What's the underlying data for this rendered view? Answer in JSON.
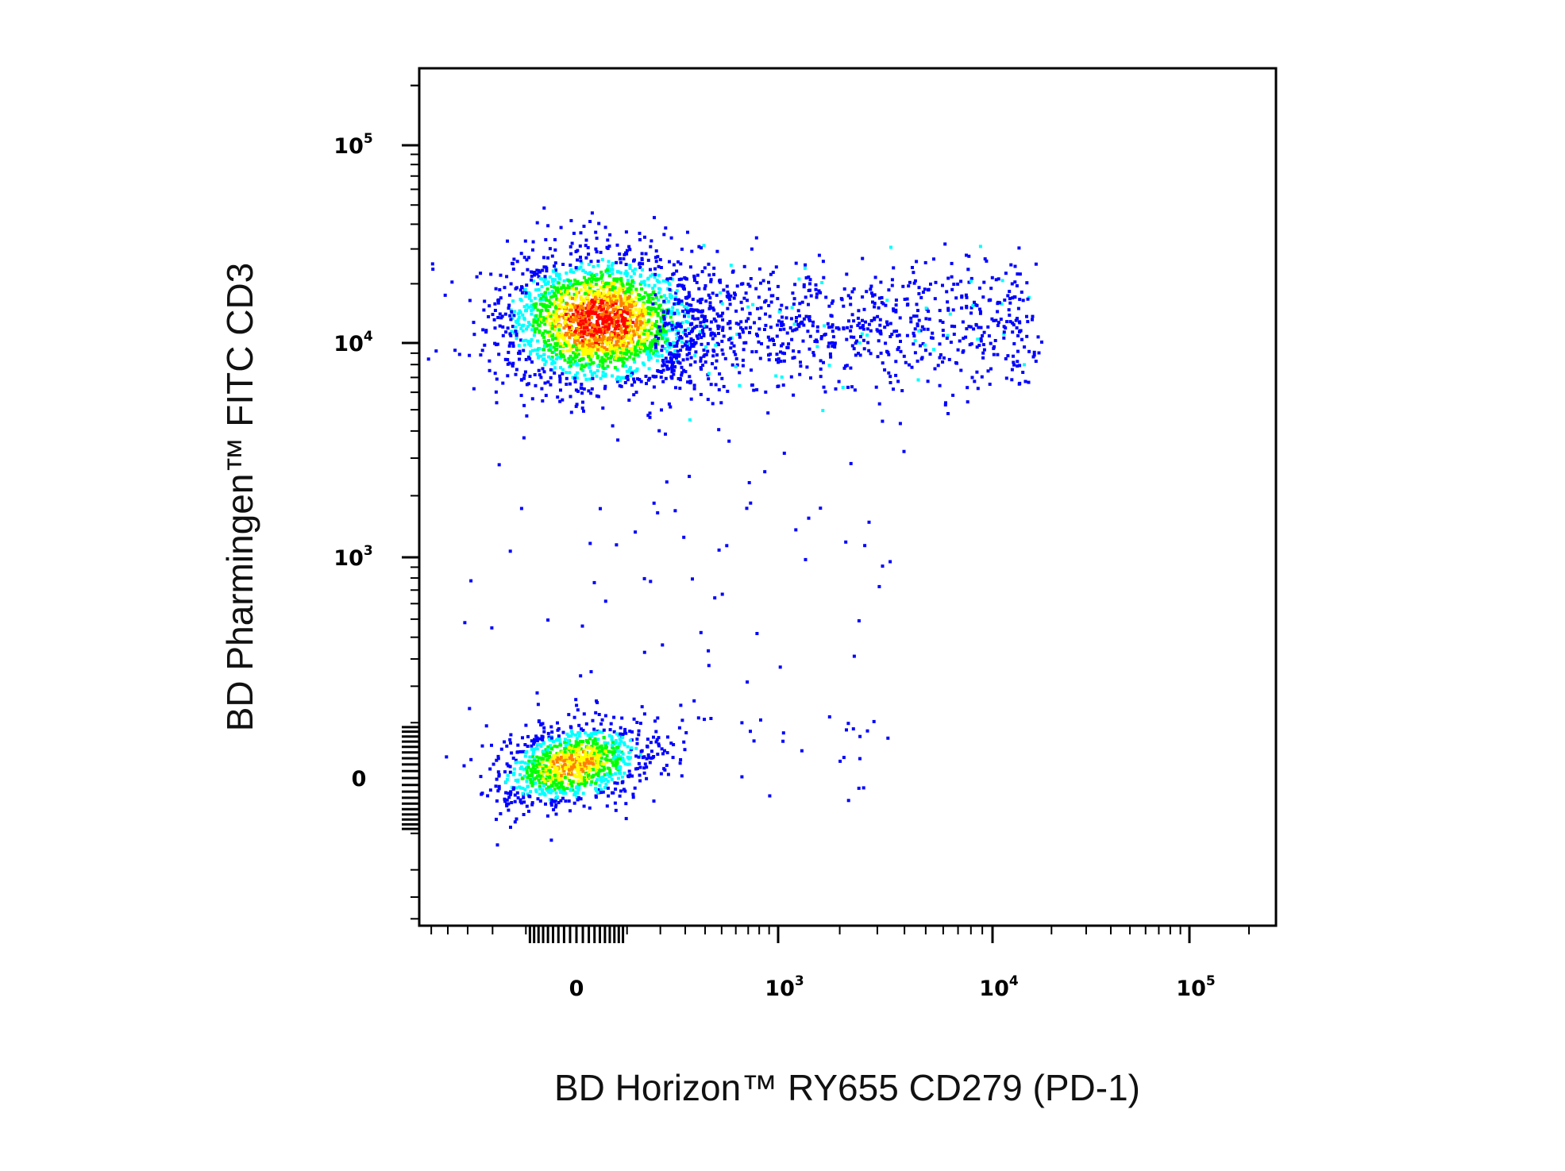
{
  "chart_data": {
    "type": "scatter",
    "subtype": "flow-cytometry-density-dot-plot",
    "title": "",
    "xlabel": "BD Horizon™ RY655 CD279 (PD-1)",
    "ylabel": "BD Pharmingen™ FITC CD3",
    "x_scale": "biexponential",
    "y_scale": "biexponential",
    "xlim": [
      -600,
      250000
    ],
    "ylim": [
      -600,
      250000
    ],
    "grid": false,
    "legend": "none",
    "x_ticks": [
      {
        "value": 0,
        "base": "0",
        "exp": ""
      },
      {
        "value": 1000,
        "base": "10",
        "exp": "3"
      },
      {
        "value": 10000,
        "base": "10",
        "exp": "4"
      },
      {
        "value": 100000,
        "base": "10",
        "exp": "5"
      }
    ],
    "y_ticks": [
      {
        "value": 0,
        "base": "0",
        "exp": ""
      },
      {
        "value": 1000,
        "base": "10",
        "exp": "3"
      },
      {
        "value": 10000,
        "base": "10",
        "exp": "4"
      },
      {
        "value": 100000,
        "base": "10",
        "exp": "5"
      }
    ],
    "density_colors": [
      "#0000ff",
      "#00ffff",
      "#00ff00",
      "#ffff00",
      "#ff8000",
      "#ff0000"
    ],
    "populations": [
      {
        "name": "",
        "x_center": 40,
        "y_center": 13000,
        "x_spread": 90,
        "y_spread": 0.17,
        "count": 2300,
        "peak_density": 1.0
      },
      {
        "name": "",
        "x_center": 1800,
        "y_center": 11000,
        "x_spread": 1.0,
        "y_spread": 0.14,
        "count": 900,
        "peak_density": 0.35
      },
      {
        "name": "",
        "x_center": 20,
        "y_center": 20,
        "x_spread": 75,
        "y_spread": 65,
        "count": 1100,
        "peak_density": 0.8
      }
    ]
  }
}
